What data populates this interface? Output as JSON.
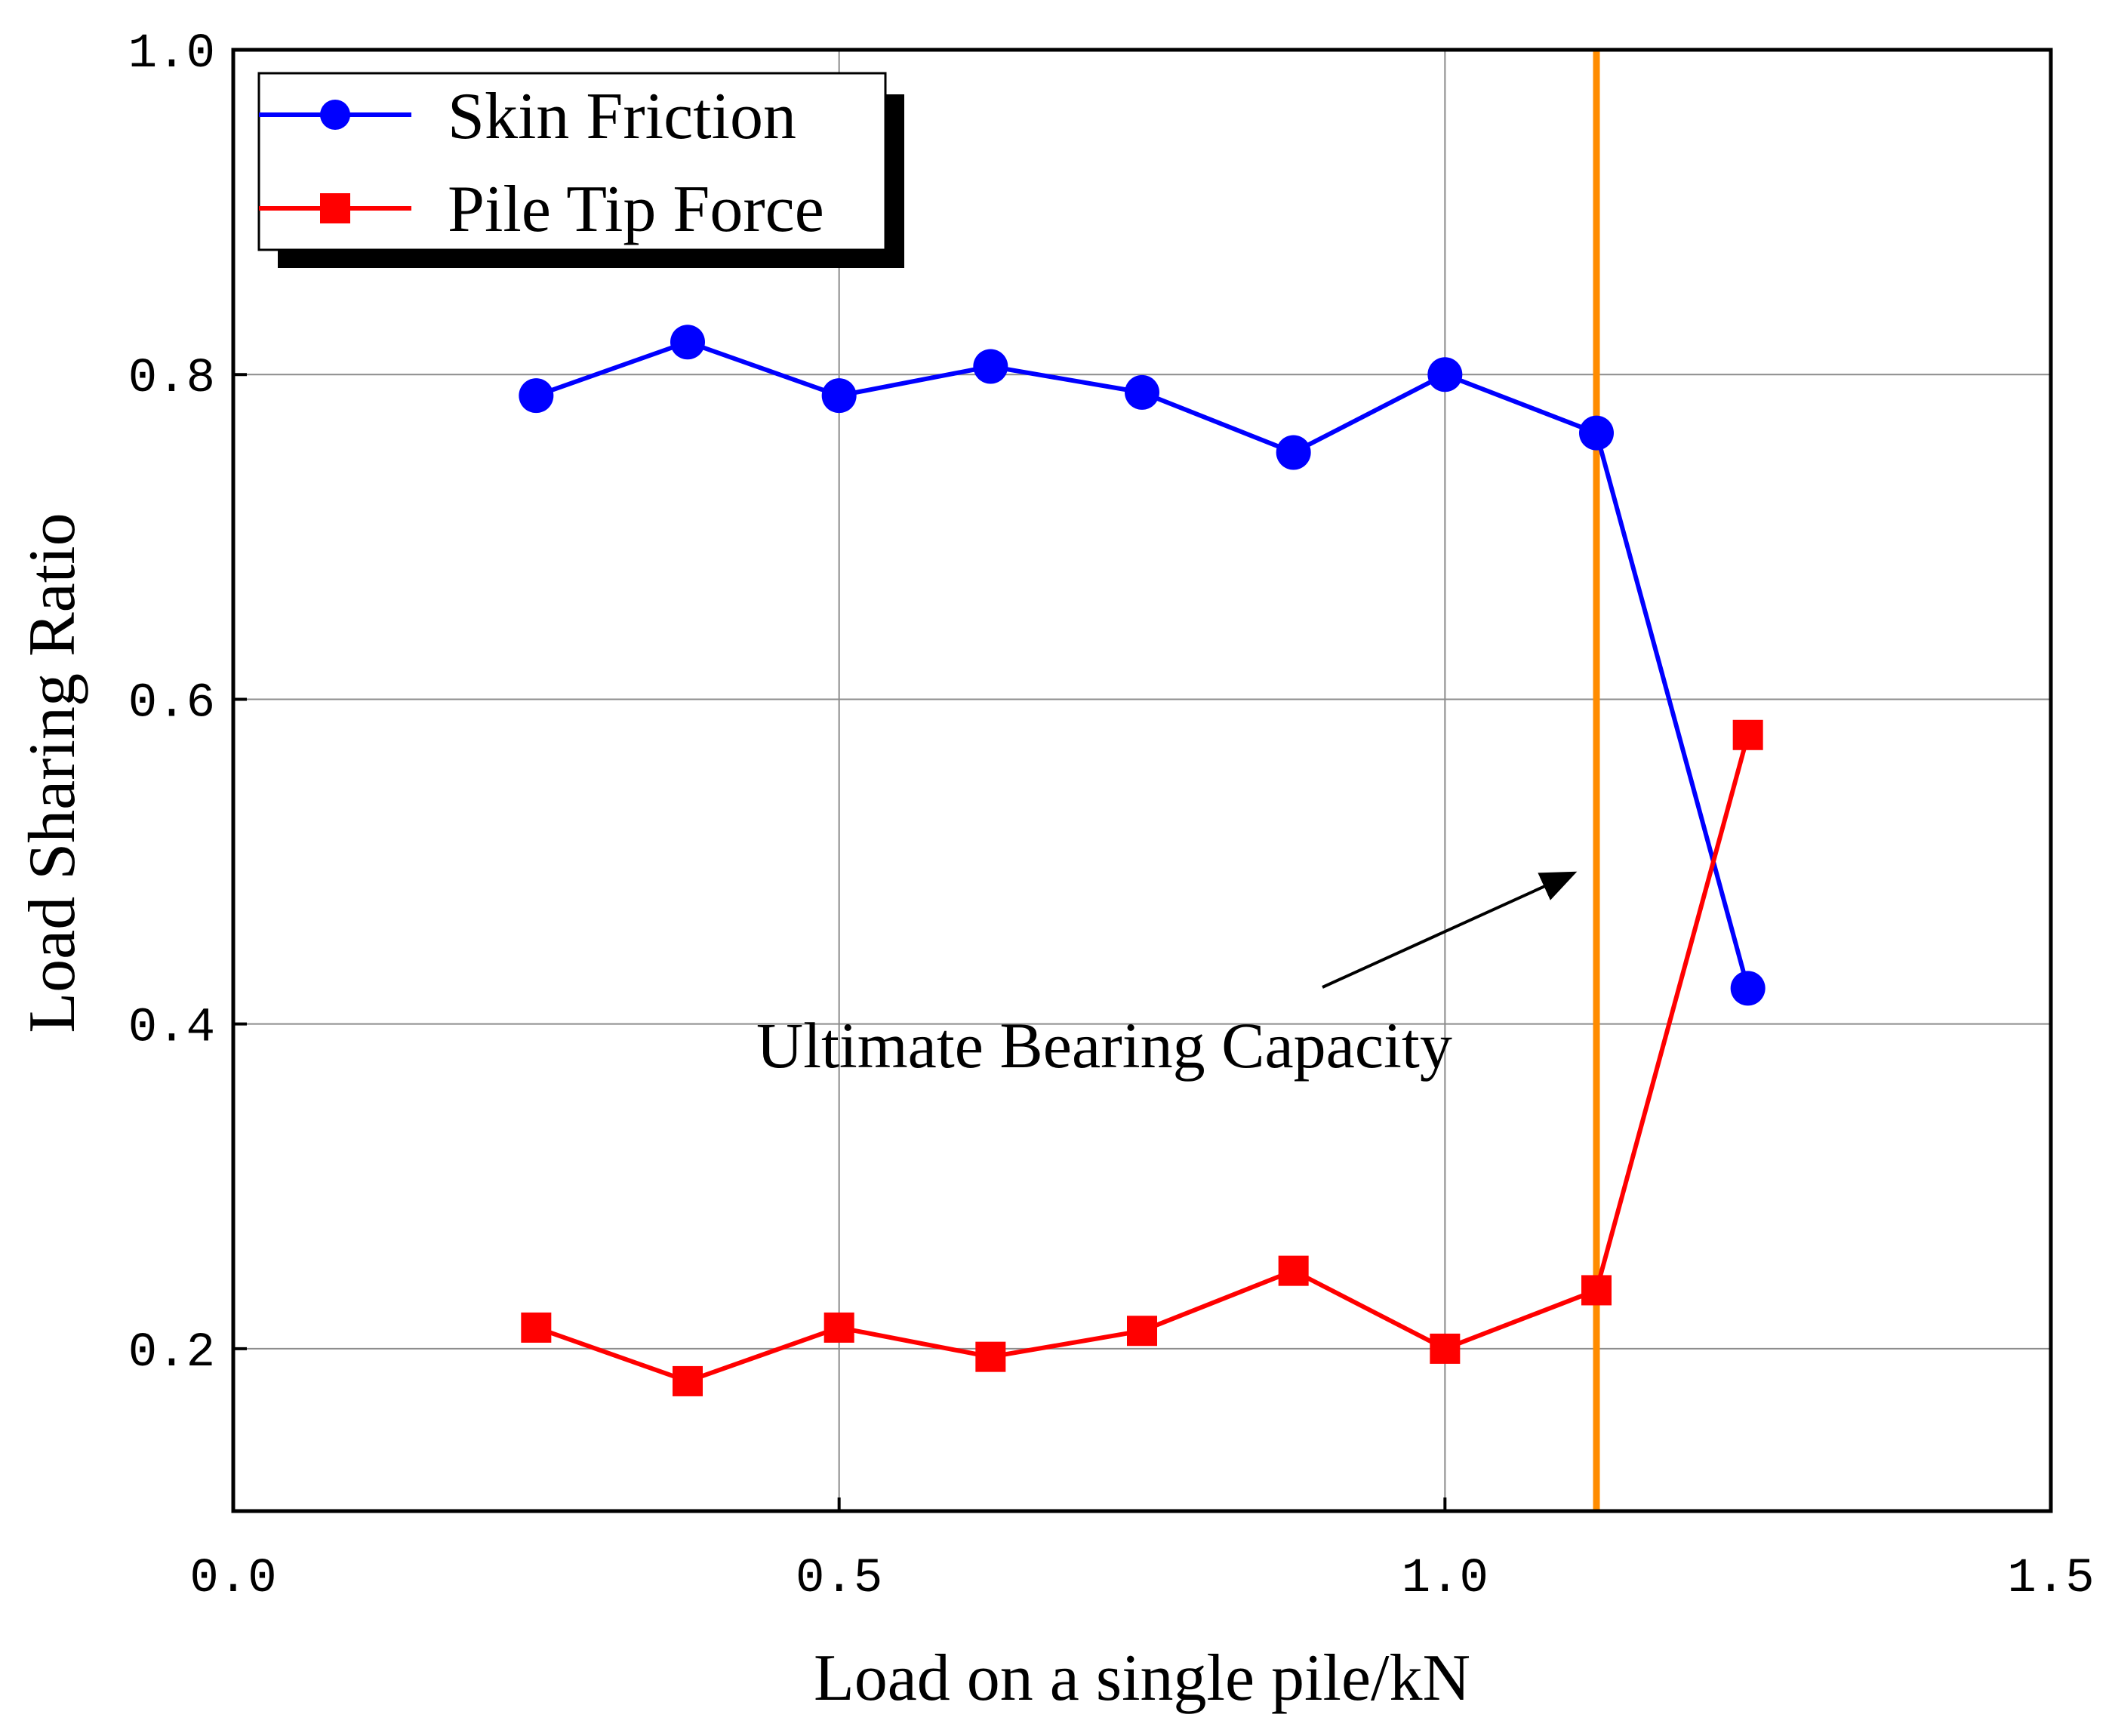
{
  "chart_data": {
    "type": "line",
    "title": "",
    "xlabel": "Load on a single pile/kN",
    "ylabel": "Load Sharing Ratio",
    "xlim": [
      0.0,
      1.5
    ],
    "ylim": [
      0.1,
      1.0
    ],
    "xticks": [
      0.0,
      0.5,
      1.0,
      1.5
    ],
    "xtick_labels": [
      "0.0",
      "0.5",
      "1.0",
      "1.5"
    ],
    "yticks": [
      0.2,
      0.4,
      0.6,
      0.8,
      1.0
    ],
    "ytick_labels": [
      "0.2",
      "0.4",
      "0.6",
      "0.8",
      "1.0"
    ],
    "grid": true,
    "legend_position": "top-left",
    "x": [
      0.25,
      0.375,
      0.5,
      0.625,
      0.75,
      0.875,
      1.0,
      1.125,
      1.25
    ],
    "series": [
      {
        "name": "Skin Friction",
        "color": "#0000ff",
        "marker": "circle",
        "values": [
          0.787,
          0.82,
          0.787,
          0.805,
          0.789,
          0.752,
          0.8,
          0.764,
          0.422
        ]
      },
      {
        "name": "Pile Tip Force",
        "color": "#ff0000",
        "marker": "square",
        "values": [
          0.213,
          0.18,
          0.213,
          0.195,
          0.211,
          0.248,
          0.2,
          0.236,
          0.578
        ]
      }
    ],
    "reference_line": {
      "x": 1.125,
      "color": "#ff8c00"
    },
    "annotation": {
      "text": "Ultimate Bearing Capacity",
      "arrow_to": [
        1.105,
        0.47
      ],
      "arrow_from": [
        0.9,
        0.42
      ]
    }
  }
}
